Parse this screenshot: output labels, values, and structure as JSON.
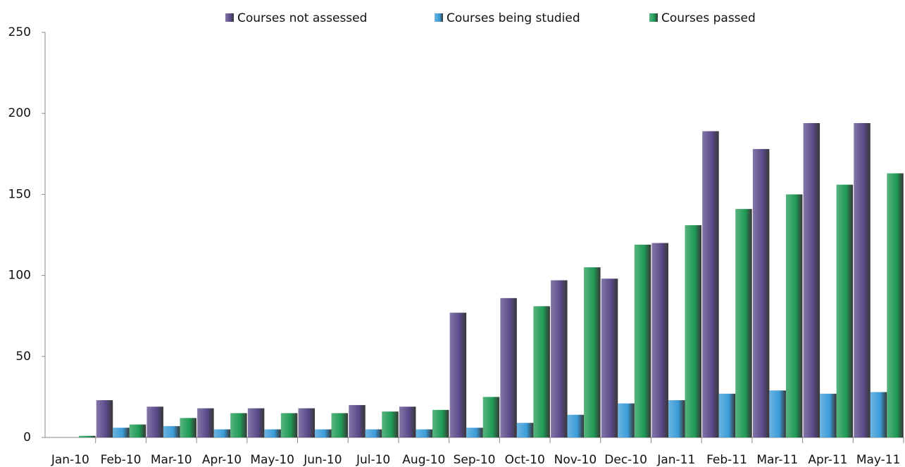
{
  "chart_data": {
    "type": "bar",
    "categories": [
      "Jan-10",
      "Feb-10",
      "Mar-10",
      "Apr-10",
      "May-10",
      "Jun-10",
      "Jul-10",
      "Aug-10",
      "Sep-10",
      "Oct-10",
      "Nov-10",
      "Dec-10",
      "Jan-11",
      "Feb-11",
      "Mar-11",
      "Apr-11",
      "May-11"
    ],
    "series": [
      {
        "name": "Courses not assessed",
        "color": "#5a4a8a",
        "values": [
          0,
          23,
          19,
          18,
          18,
          18,
          20,
          19,
          77,
          86,
          97,
          98,
          120,
          189,
          178,
          194,
          194
        ]
      },
      {
        "name": "Courses being studied",
        "color": "#3b9cd8",
        "values": [
          0,
          6,
          7,
          5,
          5,
          5,
          5,
          5,
          6,
          9,
          14,
          21,
          23,
          27,
          29,
          27,
          28
        ]
      },
      {
        "name": "Courses passed",
        "color": "#1f9a55",
        "values": [
          1,
          8,
          12,
          15,
          15,
          15,
          16,
          17,
          25,
          81,
          105,
          119,
          131,
          141,
          150,
          156,
          163
        ]
      }
    ],
    "ylim": [
      0,
      250
    ],
    "yticks": [
      0,
      50,
      100,
      150,
      200,
      250
    ],
    "grid": false,
    "legend": "top"
  }
}
